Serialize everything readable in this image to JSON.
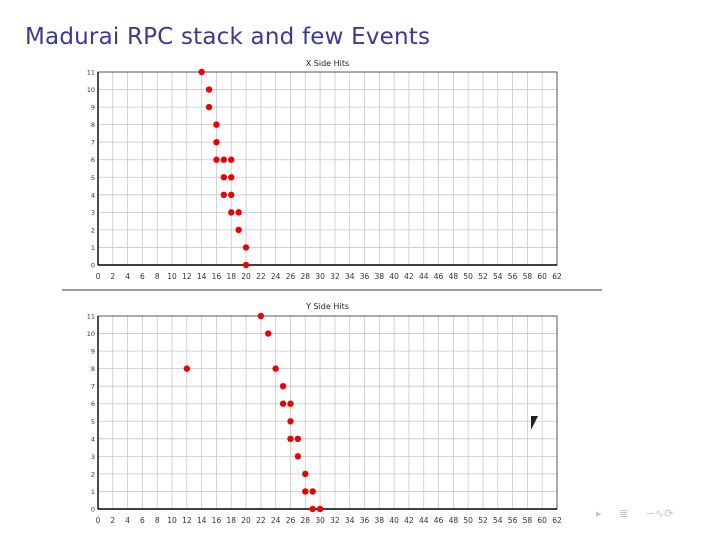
{
  "slide": {
    "title": "Madurai RPC stack and few Events"
  },
  "nav_glyphs": {
    "left": "▸",
    "menu": "≣",
    "search": "∽∿⟳"
  },
  "colors": {
    "title": "#3a3a96",
    "point": "#ee0000",
    "grid": "#c8c8c8",
    "axis": "#000000"
  },
  "chart_data": [
    {
      "type": "scatter",
      "title": "X Side Hits",
      "xlim": [
        0,
        62
      ],
      "ylim": [
        0,
        11
      ],
      "xticks": [
        0,
        2,
        4,
        6,
        8,
        10,
        12,
        14,
        16,
        18,
        20,
        22,
        24,
        26,
        28,
        30,
        32,
        34,
        36,
        38,
        40,
        42,
        44,
        46,
        48,
        50,
        52,
        54,
        56,
        58,
        60,
        62
      ],
      "yticks": [
        0,
        1,
        2,
        3,
        4,
        5,
        6,
        7,
        8,
        9,
        10,
        11
      ],
      "grid": true,
      "points": [
        {
          "x": 14,
          "y": 11
        },
        {
          "x": 15,
          "y": 10
        },
        {
          "x": 15,
          "y": 9
        },
        {
          "x": 16,
          "y": 8
        },
        {
          "x": 16,
          "y": 7
        },
        {
          "x": 16,
          "y": 6
        },
        {
          "x": 17,
          "y": 6
        },
        {
          "x": 18,
          "y": 6
        },
        {
          "x": 17,
          "y": 5
        },
        {
          "x": 18,
          "y": 5
        },
        {
          "x": 17,
          "y": 4
        },
        {
          "x": 18,
          "y": 4
        },
        {
          "x": 18,
          "y": 3
        },
        {
          "x": 19,
          "y": 3
        },
        {
          "x": 19,
          "y": 2
        },
        {
          "x": 20,
          "y": 1
        },
        {
          "x": 20,
          "y": 0
        }
      ]
    },
    {
      "type": "scatter",
      "title": "Y Side Hits",
      "xlim": [
        0,
        62
      ],
      "ylim": [
        0,
        11
      ],
      "xticks": [
        0,
        2,
        4,
        6,
        8,
        10,
        12,
        14,
        16,
        18,
        20,
        22,
        24,
        26,
        28,
        30,
        32,
        34,
        36,
        38,
        40,
        42,
        44,
        46,
        48,
        50,
        52,
        54,
        56,
        58,
        60,
        62
      ],
      "yticks": [
        0,
        1,
        2,
        3,
        4,
        5,
        6,
        7,
        8,
        9,
        10,
        11
      ],
      "grid": true,
      "points": [
        {
          "x": 22,
          "y": 11
        },
        {
          "x": 23,
          "y": 10
        },
        {
          "x": 12,
          "y": 8
        },
        {
          "x": 24,
          "y": 8
        },
        {
          "x": 25,
          "y": 7
        },
        {
          "x": 25,
          "y": 6
        },
        {
          "x": 26,
          "y": 6
        },
        {
          "x": 26,
          "y": 5
        },
        {
          "x": 26,
          "y": 4
        },
        {
          "x": 27,
          "y": 4
        },
        {
          "x": 27,
          "y": 3
        },
        {
          "x": 28,
          "y": 2
        },
        {
          "x": 28,
          "y": 1
        },
        {
          "x": 29,
          "y": 1
        },
        {
          "x": 29,
          "y": 0
        },
        {
          "x": 30,
          "y": 0
        }
      ]
    }
  ]
}
